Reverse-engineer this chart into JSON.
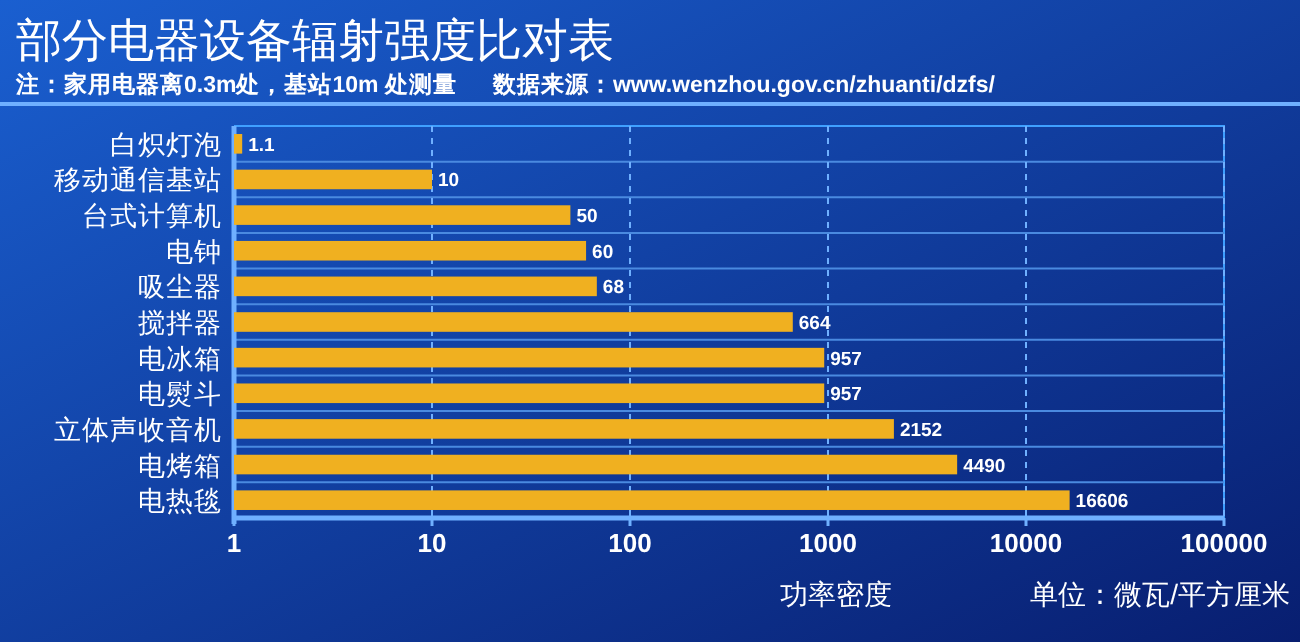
{
  "chart_data": {
    "type": "bar",
    "orientation": "horizontal",
    "title": "部分电器设备辐射强度比对表",
    "subtitle": "注：家用电器离0.3m处，基站10m 处测量",
    "annotations": [
      "数据来源：www.wenzhou.gov.cn/zhuanti/dzfs/",
      "单位：微瓦/平方厘米"
    ],
    "xlabel": "功率密度",
    "categories": [
      "白炽灯泡",
      "移动通信基站",
      "台式计算机",
      "电钟",
      "吸尘器",
      "搅拌器",
      "电冰箱",
      "电熨斗",
      "立体声收音机",
      "电烤箱",
      "电热毯"
    ],
    "values": [
      1.1,
      10,
      50,
      60,
      68,
      664,
      957,
      957,
      2152,
      4490,
      16606
    ],
    "color": "#f0b020",
    "log": "x",
    "xlim": [
      1,
      100000
    ],
    "xticks": [
      1,
      10,
      100,
      1000,
      10000,
      100000
    ],
    "grid": "x",
    "data_labels": true
  }
}
